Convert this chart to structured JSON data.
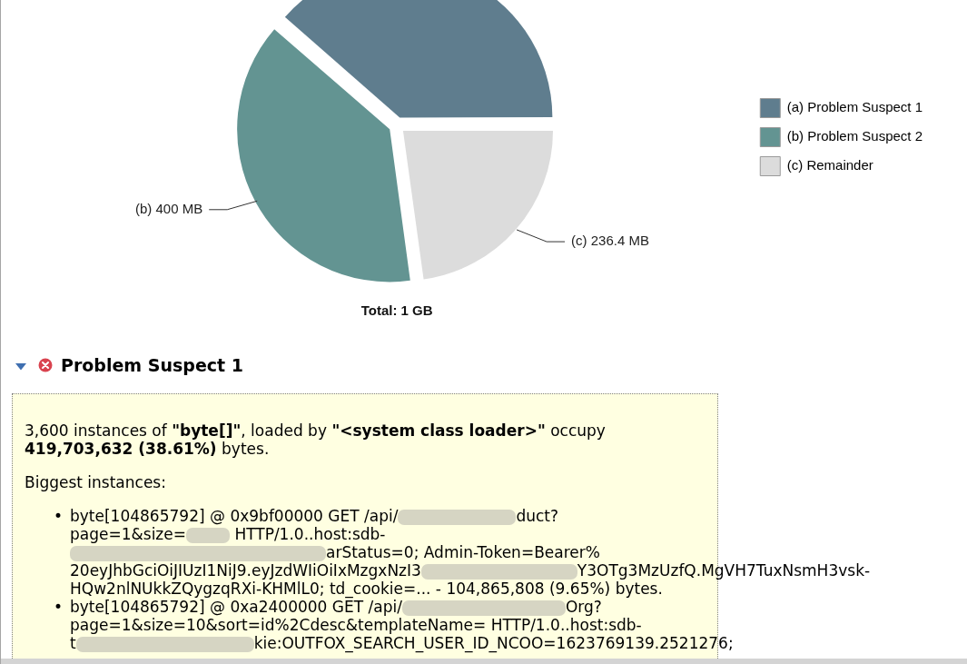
{
  "chart_data": {
    "type": "pie",
    "categories": [
      "(a) Problem Suspect 1",
      "(b) Problem Suspect 2",
      "(c) Remainder"
    ],
    "values": [
      400,
      400,
      236.4
    ],
    "colors": [
      "#5f7d8e",
      "#639492",
      "#dcdcdc"
    ],
    "value_labels": [
      null,
      "(b) 400 MB",
      "(c) 236.4 MB"
    ],
    "legend": "right",
    "annotations": [
      "Total: 1 GB",
      "Problem Suspect 1",
      "3,600 instances of ",
      "\"byte[]\"",
      ", loaded by ",
      "\"<system class loader>\"",
      " occupy",
      "419,703,632 (38.61%)",
      " bytes.",
      "Biggest instances:",
      "byte[104865792] @ 0x9bf00000 GET /api/",
      "duct?",
      "page=1&size=",
      " HTTP/1.0..host:sdb-",
      "arStatus=0; Admin-Token=Bearer%",
      "20eyJhbGciOiJIUzI1NiJ9.eyJzdWIiOiIxMzgxNzI3",
      "Y3OTg3MzUzfQ.MgVH7TuxNsmH3vsk-",
      "HQw2nlNUkkZQygzqRXi-KHMlL0; td_cookie=... - 104,865,808 (9.65%) bytes.",
      "byte[104865792] @ 0xa2400000 GET /api/",
      "Org?",
      "page=1&size=10&sort=id%2Cdesc&templateName= HTTP/1.0..host:sdb-",
      "t",
      "kie:OUTFOX_SEARCH_USER_ID_NCOO=1623769139.2521276;",
      "•",
      "•"
    ]
  }
}
